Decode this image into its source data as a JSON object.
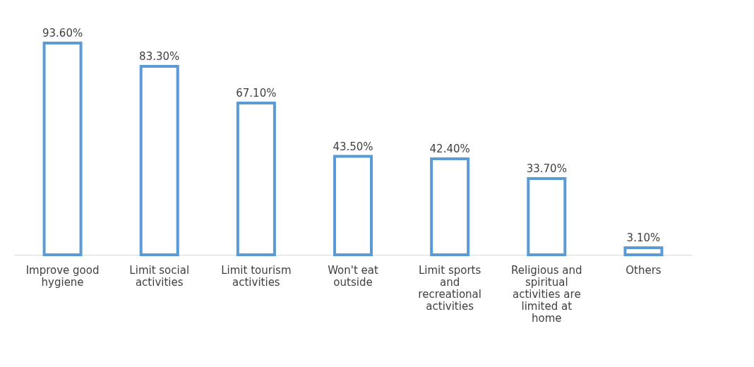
{
  "chart_data": {
    "type": "bar",
    "categories": [
      "Improve good hygiene",
      "Limit social activities",
      "Limit tourism activities",
      "Won't eat outside",
      "Limit sports and recreational activities",
      "Religious and spiritual activities are limited at home",
      "Others"
    ],
    "values": [
      93.6,
      83.3,
      67.1,
      43.5,
      42.4,
      33.7,
      3.1
    ],
    "value_labels": [
      "93.60%",
      "83.30%",
      "67.10%",
      "43.50%",
      "42.40%",
      "33.70%",
      "3.10%"
    ],
    "color": "#5b9bd5",
    "grid": false
  }
}
